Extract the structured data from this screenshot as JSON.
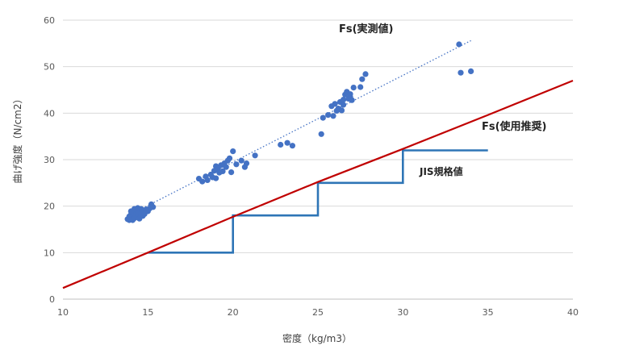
{
  "chart_data": {
    "type": "scatter",
    "xlabel": "密度（kg/m3）",
    "ylabel": "曲げ強度（N/cm2）",
    "xlim": [
      10,
      40
    ],
    "ylim": [
      0,
      60
    ],
    "x_ticks": [
      "10",
      "15",
      "20",
      "25",
      "30",
      "35",
      "40"
    ],
    "y_ticks": [
      "0",
      "10",
      "20",
      "30",
      "40",
      "50",
      "60"
    ],
    "grid": "horizontal",
    "colors": {
      "measured": "#4472c4",
      "trend": "#4472c4",
      "recommended": "#c00000",
      "jis": "#2e75b6",
      "grid": "#d9d9d9",
      "text": "#595959"
    },
    "annotations": [
      {
        "text": "Fs(実測値)",
        "series": "measured"
      },
      {
        "text": "Fs(使用推奨)",
        "series": "recommended"
      },
      {
        "text": "JIS規格値",
        "series": "jis"
      }
    ],
    "series": [
      {
        "key": "measured",
        "type": "scatter",
        "points": [
          [
            13.8,
            17.2
          ],
          [
            13.9,
            17.8
          ],
          [
            14.0,
            17.5
          ],
          [
            14.0,
            18.2
          ],
          [
            14.1,
            17.0
          ],
          [
            14.1,
            18.6
          ],
          [
            14.2,
            18.0
          ],
          [
            14.2,
            17.4
          ],
          [
            14.3,
            18.8
          ],
          [
            14.3,
            19.2
          ],
          [
            14.4,
            17.6
          ],
          [
            14.4,
            18.4
          ],
          [
            14.5,
            19.0
          ],
          [
            14.5,
            17.3
          ],
          [
            14.6,
            18.1
          ],
          [
            14.6,
            19.4
          ],
          [
            14.7,
            18.7
          ],
          [
            14.8,
            19.1
          ],
          [
            14.9,
            19.3
          ],
          [
            15.0,
            18.9
          ],
          [
            15.1,
            19.5
          ],
          [
            15.2,
            20.4
          ],
          [
            15.3,
            19.8
          ],
          [
            14.2,
            19.4
          ],
          [
            14.4,
            19.6
          ],
          [
            14.6,
            18.5
          ],
          [
            14.0,
            18.9
          ],
          [
            14.7,
            17.9
          ],
          [
            13.9,
            17.0
          ],
          [
            14.8,
            18.3
          ],
          [
            18.0,
            25.9
          ],
          [
            18.2,
            25.3
          ],
          [
            18.4,
            26.4
          ],
          [
            18.5,
            25.6
          ],
          [
            18.7,
            26.8
          ],
          [
            18.8,
            26.2
          ],
          [
            18.9,
            27.6
          ],
          [
            19.0,
            26.0
          ],
          [
            19.1,
            28.0
          ],
          [
            19.2,
            27.2
          ],
          [
            19.3,
            28.8
          ],
          [
            19.4,
            27.5
          ],
          [
            19.5,
            29.2
          ],
          [
            19.6,
            28.4
          ],
          [
            19.7,
            29.8
          ],
          [
            19.8,
            30.3
          ],
          [
            19.9,
            27.3
          ],
          [
            20.0,
            31.8
          ],
          [
            20.2,
            29.0
          ],
          [
            20.5,
            29.8
          ],
          [
            20.7,
            28.4
          ],
          [
            20.8,
            29.2
          ],
          [
            21.3,
            30.9
          ],
          [
            19.0,
            28.6
          ],
          [
            22.8,
            33.2
          ],
          [
            23.2,
            33.6
          ],
          [
            23.5,
            33.0
          ],
          [
            25.2,
            35.5
          ],
          [
            25.3,
            39.0
          ],
          [
            25.6,
            39.6
          ],
          [
            25.8,
            41.5
          ],
          [
            25.9,
            39.4
          ],
          [
            26.0,
            42.0
          ],
          [
            26.1,
            40.5
          ],
          [
            26.2,
            41.0
          ],
          [
            26.3,
            42.4
          ],
          [
            26.4,
            40.6
          ],
          [
            26.5,
            42.9
          ],
          [
            26.6,
            44.0
          ],
          [
            26.7,
            44.6
          ],
          [
            26.8,
            43.1
          ],
          [
            26.9,
            43.5
          ],
          [
            27.0,
            42.8
          ],
          [
            27.1,
            45.5
          ],
          [
            27.5,
            45.6
          ],
          [
            27.6,
            47.3
          ],
          [
            27.8,
            48.4
          ],
          [
            26.5,
            41.8
          ],
          [
            26.9,
            44.1
          ],
          [
            33.3,
            54.8
          ],
          [
            33.4,
            48.7
          ],
          [
            34.0,
            49.0
          ]
        ]
      },
      {
        "key": "trend",
        "type": "dotted-line",
        "points": [
          [
            14.5,
            19.2
          ],
          [
            34.0,
            55.6
          ]
        ]
      },
      {
        "key": "recommended",
        "type": "line",
        "points": [
          [
            10,
            2.4
          ],
          [
            15,
            10.0
          ],
          [
            20,
            17.7
          ],
          [
            25,
            25.2
          ],
          [
            30,
            32.3
          ],
          [
            35,
            39.6
          ],
          [
            40,
            47.0
          ]
        ]
      },
      {
        "key": "jis",
        "type": "step",
        "points": [
          [
            15,
            10
          ],
          [
            20,
            10
          ],
          [
            20,
            18
          ],
          [
            25,
            18
          ],
          [
            25,
            25
          ],
          [
            30,
            25
          ],
          [
            30,
            32
          ],
          [
            35,
            32
          ]
        ]
      }
    ]
  }
}
